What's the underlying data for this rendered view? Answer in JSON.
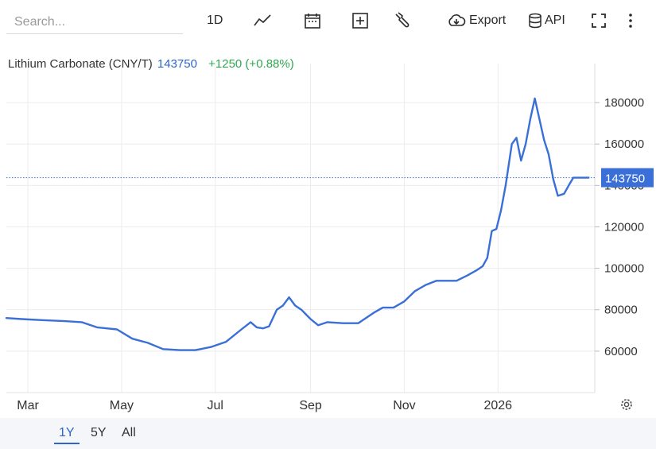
{
  "toolbar": {
    "search_placeholder": "Search...",
    "interval_label": "1D",
    "export_label": "Export",
    "api_label": "API"
  },
  "legend": {
    "name": "Lithium Carbonate (CNY/T)",
    "price": "143750",
    "change": "+1250 (+0.88%)"
  },
  "range": {
    "buttons": [
      "1Y",
      "5Y",
      "All"
    ],
    "active": "1Y"
  },
  "colors": {
    "line": "#3a6fd8",
    "last_price_tag": "#3a6fd8",
    "change_positive": "#2fa84f"
  },
  "chart_data": {
    "type": "line",
    "title": "Lithium Carbonate (CNY/T)",
    "last_value": 143750,
    "x_tick_labels": [
      "Mar",
      "May",
      "Jul",
      "Sep",
      "Nov",
      "2026"
    ],
    "x_ticks": [
      "2025-03-01",
      "2025-05-01",
      "2025-07-01",
      "2025-09-01",
      "2025-11-01",
      "2026-01-01"
    ],
    "y_ticks": [
      60000,
      80000,
      100000,
      120000,
      140000,
      160000,
      180000
    ],
    "ylim": [
      40000,
      195000
    ],
    "xlim": [
      "2025-02-15",
      "2026-03-05"
    ],
    "grid": true,
    "series": [
      {
        "x": [
          "2025-02-15",
          "2025-02-25",
          "2025-03-10",
          "2025-03-25",
          "2025-04-05",
          "2025-04-15",
          "2025-04-28",
          "2025-05-08",
          "2025-05-18",
          "2025-05-28",
          "2025-06-08",
          "2025-06-18",
          "2025-06-28",
          "2025-07-08",
          "2025-07-18",
          "2025-07-24",
          "2025-07-28",
          "2025-08-01",
          "2025-08-05",
          "2025-08-10",
          "2025-08-14",
          "2025-08-18",
          "2025-08-22",
          "2025-08-26",
          "2025-09-01",
          "2025-09-06",
          "2025-09-12",
          "2025-09-22",
          "2025-10-02",
          "2025-10-12",
          "2025-10-18",
          "2025-10-25",
          "2025-11-01",
          "2025-11-08",
          "2025-11-15",
          "2025-11-22",
          "2025-11-28",
          "2025-12-05",
          "2025-12-12",
          "2025-12-18",
          "2025-12-22",
          "2025-12-25",
          "2025-12-28",
          "2025-12-31",
          "2026-01-03",
          "2026-01-06",
          "2026-01-10",
          "2026-01-13",
          "2026-01-16",
          "2026-01-19",
          "2026-01-22",
          "2026-01-25",
          "2026-01-28",
          "2026-01-31",
          "2026-02-03",
          "2026-02-06",
          "2026-02-09",
          "2026-02-13",
          "2026-02-16",
          "2026-02-19",
          "2026-02-22",
          "2026-02-26",
          "2026-03-01"
        ],
        "y": [
          76000,
          75500,
          75000,
          74500,
          74000,
          71500,
          70500,
          66000,
          64000,
          61000,
          60500,
          60500,
          62000,
          64500,
          70500,
          74000,
          71500,
          71000,
          72000,
          80000,
          82000,
          86000,
          82000,
          80000,
          75500,
          72500,
          74000,
          73500,
          73500,
          78500,
          81000,
          81000,
          84000,
          89000,
          92000,
          94000,
          94000,
          94000,
          96500,
          99000,
          101000,
          105000,
          118000,
          119000,
          128000,
          140000,
          160000,
          163000,
          152000,
          160000,
          172000,
          182000,
          172000,
          162000,
          155000,
          143000,
          135000,
          136000,
          140000,
          143750,
          143750,
          143750,
          143750
        ]
      }
    ]
  }
}
